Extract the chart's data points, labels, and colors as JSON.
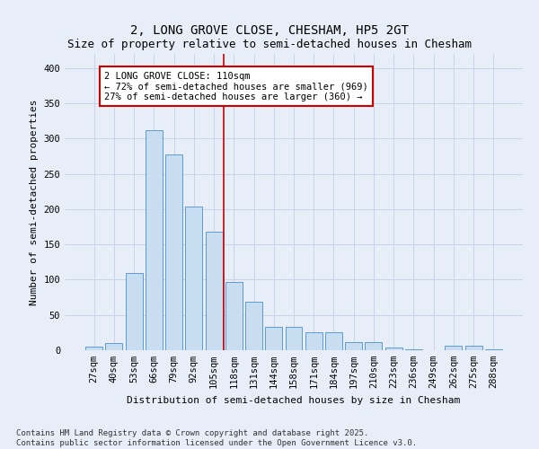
{
  "title": "2, LONG GROVE CLOSE, CHESHAM, HP5 2GT",
  "subtitle": "Size of property relative to semi-detached houses in Chesham",
  "xlabel": "Distribution of semi-detached houses by size in Chesham",
  "ylabel": "Number of semi-detached properties",
  "categories": [
    "27sqm",
    "40sqm",
    "53sqm",
    "66sqm",
    "79sqm",
    "92sqm",
    "105sqm",
    "118sqm",
    "131sqm",
    "144sqm",
    "158sqm",
    "171sqm",
    "184sqm",
    "197sqm",
    "210sqm",
    "223sqm",
    "236sqm",
    "249sqm",
    "262sqm",
    "275sqm",
    "288sqm"
  ],
  "values": [
    5,
    10,
    110,
    312,
    277,
    204,
    168,
    97,
    69,
    33,
    33,
    25,
    25,
    12,
    11,
    4,
    1,
    0,
    6,
    6,
    1
  ],
  "bar_color": "#c8ddf0",
  "bar_edge_color": "#5b9bd5",
  "grid_color": "#c8d4e8",
  "bg_color": "#e8eef8",
  "vline_color": "#cc0000",
  "annotation_title": "2 LONG GROVE CLOSE: 110sqm",
  "annotation_line1": "← 72% of semi-detached houses are smaller (969)",
  "annotation_line2": "27% of semi-detached houses are larger (360) →",
  "annotation_box_color": "#ffffff",
  "annotation_border_color": "#cc0000",
  "footnote1": "Contains HM Land Registry data © Crown copyright and database right 2025.",
  "footnote2": "Contains public sector information licensed under the Open Government Licence v3.0.",
  "ylim": [
    0,
    420
  ],
  "yticks": [
    0,
    50,
    100,
    150,
    200,
    250,
    300,
    350,
    400
  ],
  "title_fontsize": 10,
  "subtitle_fontsize": 9,
  "xlabel_fontsize": 8,
  "ylabel_fontsize": 8,
  "tick_fontsize": 7.5,
  "annot_fontsize": 7.5,
  "footnote_fontsize": 6.5
}
